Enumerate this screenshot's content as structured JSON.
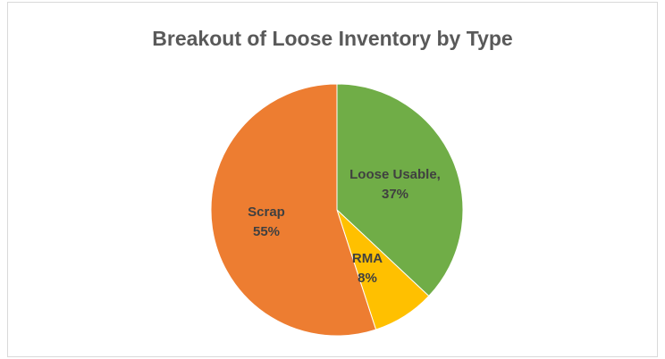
{
  "chart_data": {
    "type": "pie",
    "title": "Breakout of Loose Inventory by Type",
    "categories": [
      "Loose Usable",
      "RMA",
      "Scrap"
    ],
    "values": [
      37,
      8,
      55
    ],
    "labels": [
      {
        "line1": "Loose Usable,",
        "line2": "37%"
      },
      {
        "line1": "RMA",
        "line2": "8%"
      },
      {
        "line1": "Scrap",
        "line2": "55%"
      }
    ],
    "colors": [
      "#70ad47",
      "#ffc000",
      "#ed7d31"
    ]
  }
}
